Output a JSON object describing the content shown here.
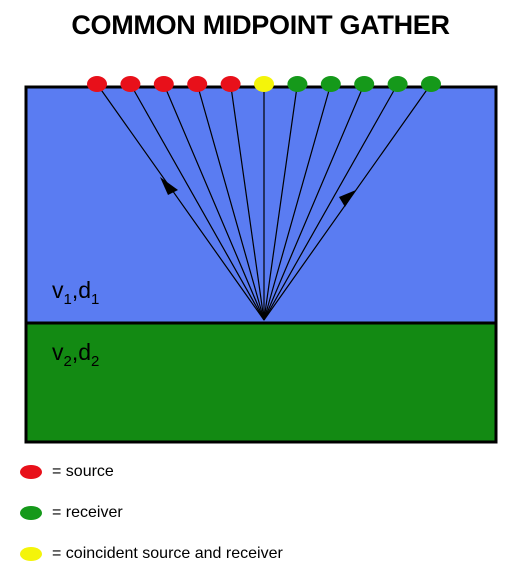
{
  "title": "COMMON MIDPOINT GATHER",
  "layers": [
    {
      "velocity": "v",
      "velocity_sub": "1",
      "separator": ",",
      "depth": "d",
      "depth_sub": "1",
      "color": "#5A7CF2"
    },
    {
      "velocity": "v",
      "velocity_sub": "2",
      "separator": ",",
      "depth": "d",
      "depth_sub": "2",
      "color": "#138A13"
    }
  ],
  "stations": [
    {
      "type": "source",
      "color": "#E8101A"
    },
    {
      "type": "source",
      "color": "#E8101A"
    },
    {
      "type": "source",
      "color": "#E8101A"
    },
    {
      "type": "source",
      "color": "#E8101A"
    },
    {
      "type": "source",
      "color": "#E8101A"
    },
    {
      "type": "coincident",
      "color": "#F4F40A"
    },
    {
      "type": "receiver",
      "color": "#15991A"
    },
    {
      "type": "receiver",
      "color": "#15991A"
    },
    {
      "type": "receiver",
      "color": "#15991A"
    },
    {
      "type": "receiver",
      "color": "#15991A"
    },
    {
      "type": "receiver",
      "color": "#15991A"
    }
  ],
  "legend": [
    {
      "color": "#E8101A",
      "label": "= source"
    },
    {
      "color": "#15991A",
      "label": "= receiver"
    },
    {
      "color": "#F4F40A",
      "label": "= coincident source and receiver"
    }
  ]
}
